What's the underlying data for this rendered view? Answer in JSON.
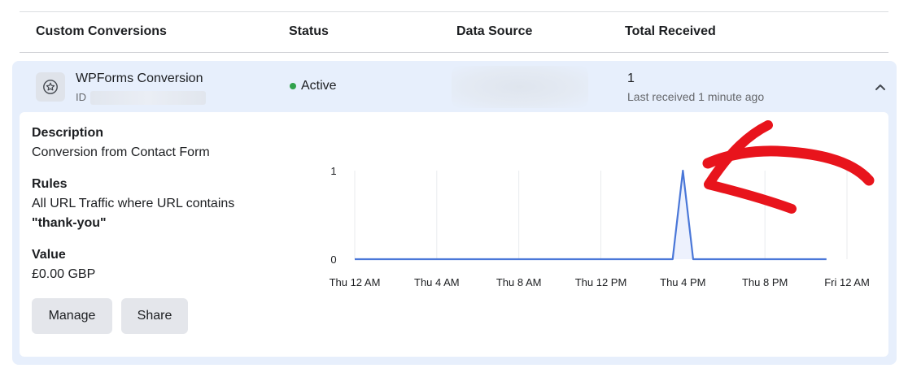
{
  "table": {
    "headers": {
      "conversions": "Custom Conversions",
      "status": "Status",
      "data_source": "Data Source",
      "total": "Total Received"
    }
  },
  "conversion": {
    "name": "WPForms Conversion",
    "id_label": "ID",
    "status": "Active",
    "status_color": "#31a24c",
    "total_count": "1",
    "last_received": "Last received 1 minute ago",
    "icon": "star-in-circle-icon",
    "collapse_icon": "chevron-up-icon"
  },
  "details": {
    "description_label": "Description",
    "description": "Conversion from Contact Form",
    "rules_label": "Rules",
    "rules_text": "All URL Traffic where URL contains",
    "rules_value": "\"thank-you\"",
    "value_label": "Value",
    "value": "£0.00 GBP",
    "manage_button": "Manage",
    "share_button": "Share"
  },
  "annotation_color": "#e8141c",
  "chart_data": {
    "type": "area",
    "title": "",
    "xlabel": "",
    "ylabel": "",
    "x_tick_labels": [
      "Thu 12 AM",
      "Thu 4 AM",
      "Thu 8 AM",
      "Thu 12 PM",
      "Thu 4 PM",
      "Thu 8 PM",
      "Fri 12 AM"
    ],
    "y_tick_labels": [
      "1",
      "0"
    ],
    "ylim": [
      0,
      1
    ],
    "xlim_hours": [
      0,
      24
    ],
    "x_hours": [
      0,
      15.5,
      16,
      16.5,
      23
    ],
    "values": [
      0,
      0,
      1,
      0,
      0
    ],
    "line_color": "#4a77d8",
    "fill_color": "#edf1fd",
    "grid": true
  }
}
